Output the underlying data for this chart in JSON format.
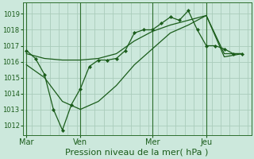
{
  "background_color": "#cce8dc",
  "grid_color": "#aaccbb",
  "line_color": "#1a5c1a",
  "marker_color": "#1a5c1a",
  "xlabel": "Pression niveau de la mer( hPa )",
  "xlabel_fontsize": 8,
  "ytick_fontsize": 6,
  "xtick_fontsize": 7,
  "yticks": [
    1012,
    1013,
    1014,
    1015,
    1016,
    1017,
    1018,
    1019
  ],
  "ylim": [
    1011.4,
    1019.7
  ],
  "xtick_labels": [
    "Mar",
    "Ven",
    "Mer",
    "Jeu"
  ],
  "xtick_positions": [
    0,
    3,
    7,
    10
  ],
  "xlim": [
    -0.2,
    12.5
  ],
  "series0_x": [
    0,
    0.5,
    1.0,
    1.5,
    2.0,
    2.5,
    3.0,
    3.5,
    4.0,
    4.5,
    5.0,
    5.5,
    6.0,
    6.5,
    7.0,
    7.5,
    8.0,
    8.5,
    9.0,
    9.5,
    10.0,
    10.5,
    11.0,
    11.5,
    12.0
  ],
  "series0_y": [
    1016.7,
    1016.2,
    1015.2,
    1013.0,
    1011.7,
    1013.3,
    1014.3,
    1015.7,
    1016.1,
    1016.1,
    1016.2,
    1016.7,
    1017.8,
    1018.0,
    1018.0,
    1018.4,
    1018.8,
    1018.6,
    1019.2,
    1018.0,
    1017.0,
    1017.0,
    1016.8,
    1016.5,
    1016.5
  ],
  "series1_x": [
    0,
    1,
    2,
    3,
    4,
    5,
    6,
    7,
    8,
    9,
    10,
    11,
    12
  ],
  "series1_y": [
    1016.5,
    1016.2,
    1016.1,
    1016.1,
    1016.2,
    1016.5,
    1017.3,
    1017.9,
    1018.3,
    1018.6,
    1018.9,
    1016.5,
    1016.5
  ],
  "series2_x": [
    0,
    1,
    2,
    3,
    4,
    5,
    6,
    7,
    8,
    9,
    10,
    11,
    12
  ],
  "series2_y": [
    1015.8,
    1015.0,
    1013.5,
    1013.0,
    1013.5,
    1014.5,
    1015.8,
    1016.8,
    1017.8,
    1018.3,
    1018.9,
    1016.3,
    1016.5
  ],
  "vlines": [
    0,
    3,
    7,
    10
  ],
  "vline_color": "#2d6e2d",
  "figsize": [
    3.2,
    2.0
  ],
  "dpi": 100
}
